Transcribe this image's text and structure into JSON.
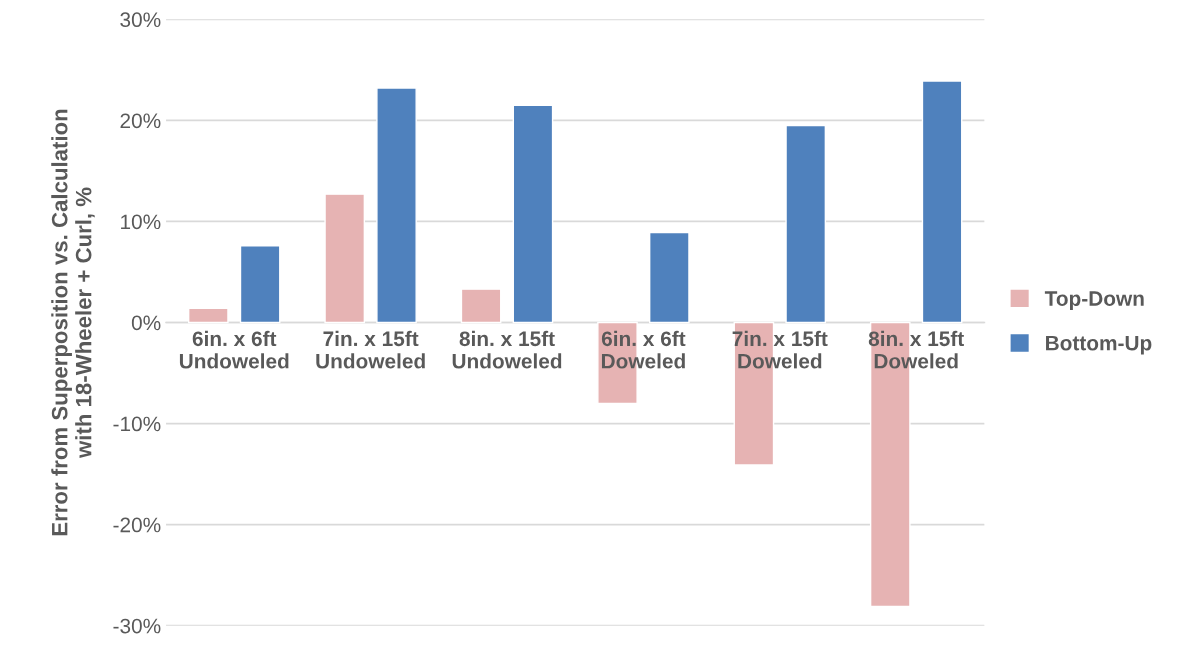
{
  "chart_data": {
    "type": "bar",
    "ylabel": "Error from Superposition vs. Calculation\nwith 18-Wheeler + Curl, %",
    "categories": [
      "6in. x 6ft\nUndoweled",
      "7in. x 15ft\nUndoweled",
      "8in. x 15ft\nUndoweled",
      "6in. x 6ft\nDoweled",
      "7in. x 15ft\nDoweled",
      "8in. x 15ft\nDoweled"
    ],
    "series": [
      {
        "name": "Top-Down",
        "color": "#e6b3b3",
        "values": [
          1.4,
          12.7,
          3.3,
          -8.0,
          -14.1,
          -28.1
        ]
      },
      {
        "name": "Bottom-Up",
        "color": "#4f81bd",
        "values": [
          7.6,
          23.2,
          21.5,
          8.9,
          19.5,
          23.9
        ]
      }
    ],
    "ylim": [
      -30,
      30
    ],
    "yticks": [
      {
        "value": -30,
        "label": "-30%"
      },
      {
        "value": -20,
        "label": "-20%"
      },
      {
        "value": -10,
        "label": "-10%"
      },
      {
        "value": 0,
        "label": "0%"
      },
      {
        "value": 10,
        "label": "10%"
      },
      {
        "value": 20,
        "label": "20%"
      },
      {
        "value": 30,
        "label": "30%"
      }
    ],
    "grid": "y",
    "legend": "right"
  }
}
